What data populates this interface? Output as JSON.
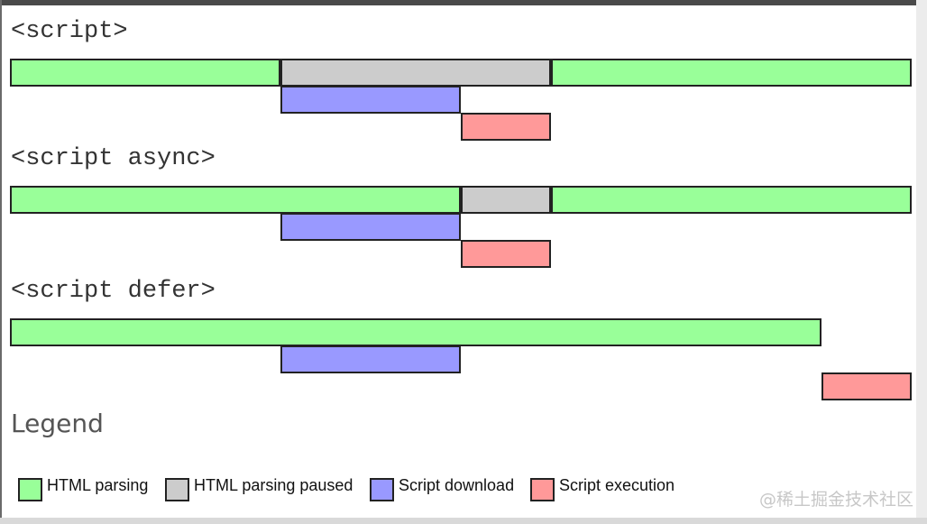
{
  "colors": {
    "parsing": "#99ff99",
    "paused": "#cccccc",
    "download": "#9999ff",
    "execution": "#ff9999"
  },
  "sections": [
    {
      "title": "<script>",
      "rows": [
        [
          {
            "type": "parsing",
            "start": 0.0,
            "end": 3.0
          },
          {
            "type": "paused",
            "start": 3.0,
            "end": 6.0
          },
          {
            "type": "parsing",
            "start": 6.0,
            "end": 10.0
          }
        ],
        [
          {
            "type": "download",
            "start": 3.0,
            "end": 5.0
          }
        ],
        [
          {
            "type": "execution",
            "start": 5.0,
            "end": 6.0
          }
        ]
      ]
    },
    {
      "title": "<script async>",
      "rows": [
        [
          {
            "type": "parsing",
            "start": 0.0,
            "end": 5.0
          },
          {
            "type": "paused",
            "start": 5.0,
            "end": 6.0
          },
          {
            "type": "parsing",
            "start": 6.0,
            "end": 10.0
          }
        ],
        [
          {
            "type": "download",
            "start": 3.0,
            "end": 5.0
          }
        ],
        [
          {
            "type": "execution",
            "start": 5.0,
            "end": 6.0
          }
        ]
      ]
    },
    {
      "title": "<script defer>",
      "rows": [
        [
          {
            "type": "parsing",
            "start": 0.0,
            "end": 9.0
          }
        ],
        [
          {
            "type": "download",
            "start": 3.0,
            "end": 5.0
          }
        ],
        [
          {
            "type": "execution",
            "start": 9.0,
            "end": 10.0
          }
        ]
      ]
    }
  ],
  "legend": {
    "title": "Legend",
    "items": [
      {
        "type": "parsing",
        "label": "HTML parsing"
      },
      {
        "type": "paused",
        "label": "HTML parsing paused"
      },
      {
        "type": "download",
        "label": "Script download"
      },
      {
        "type": "execution",
        "label": "Script execution"
      }
    ]
  },
  "watermark": "@稀土掘金技术社区"
}
